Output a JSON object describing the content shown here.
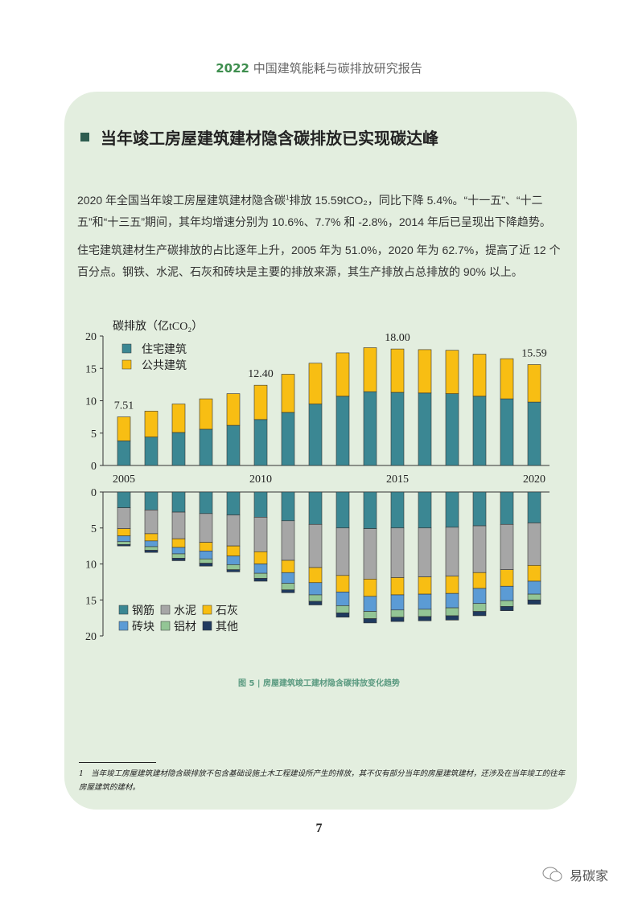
{
  "header": {
    "year": "2022",
    "title": "中国建筑能耗与碳排放研究报告"
  },
  "section_title": "当年竣工房屋建筑建材隐含碳排放已实现碳达峰",
  "paragraphs": [
    {
      "before_sup": "2020 年全国当年竣工房屋建筑建材隐含碳",
      "sup": "1",
      "after_sup": "排放 15.59tCO₂，同比下降 5.4%。“十一五”、“十二五”和“十三五”期间，其年均增速分别为 10.6%、7.7% 和 -2.8%，2014 年后已呈现出下降趋势。"
    },
    {
      "text": "住宅建筑建材生产碳排放的占比逐年上升，2005 年为 51.0%，2020 年为 62.7%，提高了近 12 个百分点。钢铁、水泥、石灰和砖块是主要的排放来源，其生产排放占总排放的 90% 以上。"
    }
  ],
  "chart_data": [
    {
      "type": "bar",
      "stacked": true,
      "ylabel": "碳排放（亿tCO₂）",
      "ylim": [
        0,
        20
      ],
      "yticks": [
        "0",
        "5",
        "10",
        "15",
        "20"
      ],
      "x": [
        2005,
        2006,
        2007,
        2008,
        2009,
        2010,
        2011,
        2012,
        2013,
        2014,
        2015,
        2016,
        2017,
        2018,
        2019,
        2020
      ],
      "xtick_labels": [
        "2005",
        "2010",
        "2015",
        "2020"
      ],
      "legend": "top-left",
      "series": [
        {
          "name": "住宅建筑",
          "color": "#3b8793",
          "values": [
            3.8,
            4.4,
            5.1,
            5.6,
            6.2,
            7.1,
            8.2,
            9.5,
            10.7,
            11.4,
            11.3,
            11.2,
            11.1,
            10.7,
            10.3,
            9.8
          ]
        },
        {
          "name": "公共建筑",
          "color": "#f8be13",
          "values": [
            3.71,
            4.0,
            4.4,
            4.7,
            4.9,
            5.3,
            5.9,
            6.3,
            6.7,
            6.8,
            6.7,
            6.7,
            6.7,
            6.5,
            6.2,
            5.79
          ]
        }
      ],
      "data_labels": [
        {
          "x": 2005,
          "text": "7.51"
        },
        {
          "x": 2010,
          "text": "12.40"
        },
        {
          "x": 2015,
          "text": "18.00"
        },
        {
          "x": 2020,
          "text": "15.59"
        }
      ]
    },
    {
      "type": "bar",
      "stacked": true,
      "inverted_y": true,
      "ylim": [
        0,
        20
      ],
      "yticks": [
        "0",
        "5",
        "10",
        "15",
        "20"
      ],
      "x": [
        2005,
        2006,
        2007,
        2008,
        2009,
        2010,
        2011,
        2012,
        2013,
        2014,
        2015,
        2016,
        2017,
        2018,
        2019,
        2020
      ],
      "legend": "bottom-left",
      "series": [
        {
          "name": "钢筋",
          "color": "#3b8793",
          "values": [
            2.2,
            2.5,
            2.8,
            3.0,
            3.2,
            3.5,
            4.0,
            4.5,
            5.0,
            5.1,
            5.0,
            5.0,
            4.9,
            4.7,
            4.5,
            4.3
          ]
        },
        {
          "name": "水泥",
          "color": "#a6a6a6",
          "values": [
            2.9,
            3.3,
            3.7,
            4.0,
            4.3,
            4.8,
            5.5,
            6.0,
            6.6,
            7.0,
            6.9,
            6.8,
            6.8,
            6.5,
            6.3,
            5.9
          ]
        },
        {
          "name": "石灰",
          "color": "#f8be13",
          "values": [
            1.0,
            1.0,
            1.2,
            1.2,
            1.4,
            1.7,
            1.7,
            2.1,
            2.3,
            2.4,
            2.4,
            2.4,
            2.4,
            2.2,
            2.3,
            2.2
          ]
        },
        {
          "name": "砖块",
          "color": "#5b9bd5",
          "values": [
            0.8,
            0.8,
            0.9,
            1.1,
            1.2,
            1.3,
            1.5,
            1.7,
            1.9,
            2.1,
            2.1,
            2.1,
            2.0,
            2.1,
            2.0,
            1.8
          ]
        },
        {
          "name": "铝材",
          "color": "#93c595",
          "values": [
            0.4,
            0.5,
            0.6,
            0.6,
            0.7,
            0.7,
            0.9,
            0.9,
            1.0,
            1.0,
            1.0,
            1.0,
            1.1,
            1.1,
            0.8,
            0.8
          ]
        },
        {
          "name": "其他",
          "color": "#1f3a5f",
          "values": [
            0.2,
            0.3,
            0.35,
            0.4,
            0.3,
            0.4,
            0.4,
            0.5,
            0.6,
            0.6,
            0.6,
            0.6,
            0.6,
            0.6,
            0.6,
            0.6
          ]
        }
      ]
    }
  ],
  "caption": "图 5 | 房屋建筑竣工建材隐含碳排放变化趋势",
  "footnote": {
    "number": "1",
    "text": "当年竣工房屋建筑建材隐含碳排放不包含基础设施土木工程建设所产生的排放，其不仅有部分当年的房屋建筑建材，还涉及在当年竣工的往年房屋建筑的建材。"
  },
  "page_number": "7",
  "watermark": {
    "icon": "wechat-icon",
    "text": "易碳家"
  }
}
